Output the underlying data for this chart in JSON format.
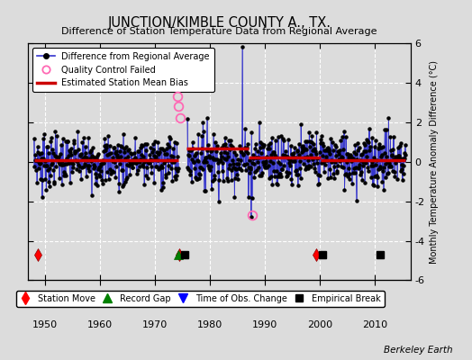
{
  "title": "JUNCTION/KIMBLE COUNTY A., TX.",
  "subtitle": "Difference of Station Temperature Data from Regional Average",
  "ylabel": "Monthly Temperature Anomaly Difference (°C)",
  "credit": "Berkeley Earth",
  "xlim": [
    1947.0,
    2016.5
  ],
  "ylim": [
    -6,
    6
  ],
  "yticks": [
    -6,
    -4,
    -2,
    0,
    2,
    4,
    6
  ],
  "xticks": [
    1950,
    1960,
    1970,
    1980,
    1990,
    2000,
    2010
  ],
  "bg_color": "#dcdcdc",
  "plot_bg": "#dcdcdc",
  "grid_color": "#ffffff",
  "line_color": "#3333cc",
  "dot_color": "#000000",
  "bias_color": "#cc0000",
  "qc_color": "#ff69b4",
  "station_moves": [
    1948.75,
    1974.5,
    1999.3
  ],
  "record_gaps": [
    1974.25
  ],
  "obs_changes": [],
  "empirical_breaks": [
    1975.5,
    2000.5,
    2011.0
  ],
  "bias_segments": [
    {
      "x_start": 1948.0,
      "x_end": 1974.2,
      "bias": 0.08
    },
    {
      "x_start": 1975.8,
      "x_end": 1987.0,
      "bias": 0.65
    },
    {
      "x_start": 1987.0,
      "x_end": 2000.2,
      "bias": 0.2
    },
    {
      "x_start": 2000.2,
      "x_end": 2015.5,
      "bias": 0.1
    }
  ],
  "qc_failed_times": [
    1974.1,
    1974.3,
    1974.6,
    1987.7
  ],
  "qc_failed_values": [
    3.3,
    2.8,
    2.2,
    -2.7
  ],
  "gap_start": 1974.3,
  "gap_end": 1975.9,
  "big_spike_time": 1985.9,
  "big_spike_value": 5.8,
  "big_neg_spike_time": 1987.5,
  "big_neg_spike_value": -2.8,
  "seed": 7
}
